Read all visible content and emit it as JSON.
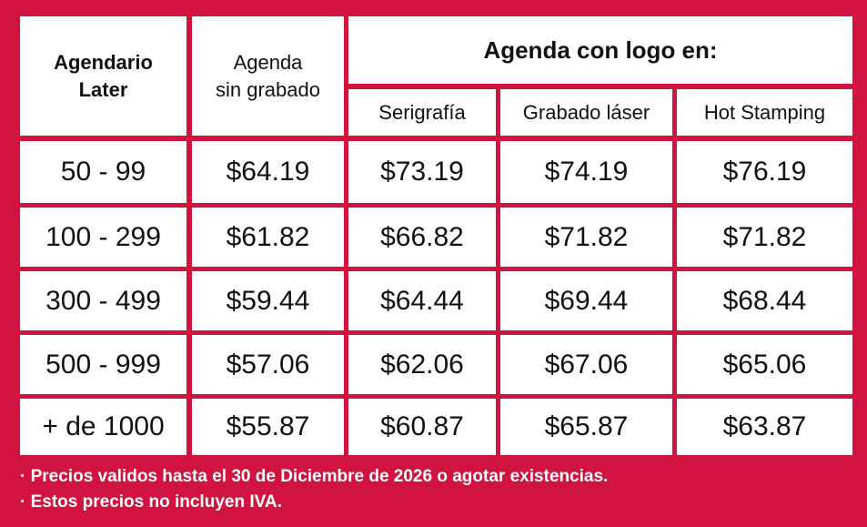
{
  "headers": {
    "col1": "Agendario\nLater",
    "col2": "Agenda\nsin grabado",
    "group": "Agenda con logo en:",
    "sub": [
      "Serigrafía",
      "Grabado láser",
      "Hot Stamping"
    ]
  },
  "rows": [
    {
      "qty": "50 - 99",
      "values": [
        "$64.19",
        "$73.19",
        "$74.19",
        "$76.19"
      ]
    },
    {
      "qty": "100 - 299",
      "values": [
        "$61.82",
        "$66.82",
        "$71.82",
        "$71.82"
      ]
    },
    {
      "qty": "300 - 499",
      "values": [
        "$59.44",
        "$64.44",
        "$69.44",
        "$68.44"
      ]
    },
    {
      "qty": "500 - 999",
      "values": [
        "$57.06",
        "$62.06",
        "$67.06",
        "$65.06"
      ]
    },
    {
      "qty": "+ de 1000",
      "values": [
        "$55.87",
        "$60.87",
        "$65.87",
        "$63.87"
      ]
    }
  ],
  "notes": [
    "· Precios validos hasta el 30 de Diciembre de 2026 o agotar existencias.",
    "· Estos precios no incluyen IVA."
  ],
  "colors": {
    "background": "#d0143f",
    "cell": "#ffffff",
    "text": "#111111"
  }
}
